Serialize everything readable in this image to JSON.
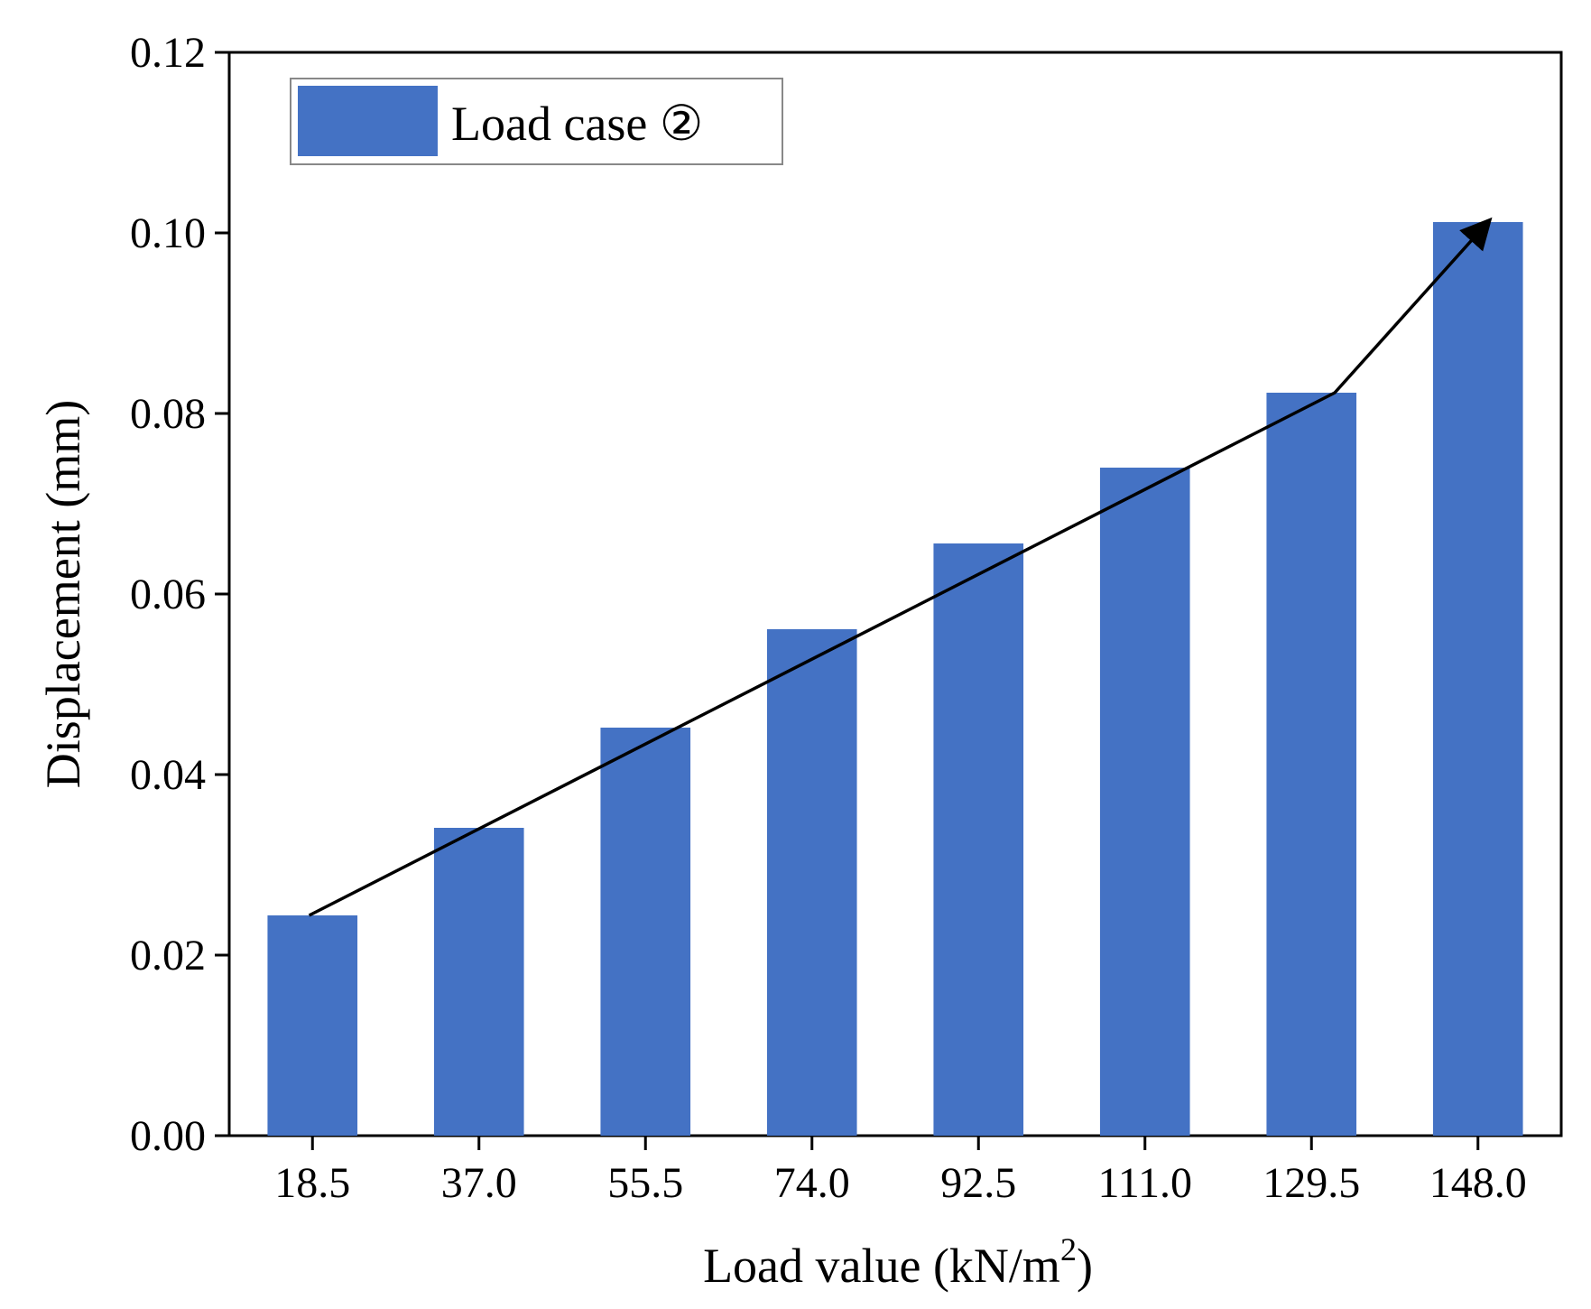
{
  "chart_data": {
    "type": "bar",
    "categories": [
      "18.5",
      "37.0",
      "55.5",
      "74.0",
      "92.5",
      "111.0",
      "129.5",
      "148.0"
    ],
    "series": [
      {
        "name": "Load case ②",
        "values": [
          0.0244,
          0.0341,
          0.0452,
          0.0561,
          0.0656,
          0.074,
          0.0823,
          0.1012
        ],
        "color": "#4472C4"
      }
    ],
    "title": "",
    "xlabel": "Load value (kN/m",
    "xlabel_superscript": "2",
    "xlabel_suffix": ")",
    "ylabel": "Displacement (mm)",
    "ylim": [
      0,
      0.12
    ],
    "yticks": [
      "0.00",
      "0.02",
      "0.04",
      "0.06",
      "0.08",
      "0.10",
      "0.12"
    ],
    "ytick_values": [
      0,
      0.02,
      0.04,
      0.06,
      0.08,
      0.1,
      0.12
    ],
    "grid": false,
    "legend": "top-left",
    "trend_arrow": {
      "points": [
        [
          0,
          0.0244
        ],
        [
          6,
          0.0823
        ],
        [
          7,
          0.1012
        ]
      ],
      "color": "#000000"
    }
  }
}
